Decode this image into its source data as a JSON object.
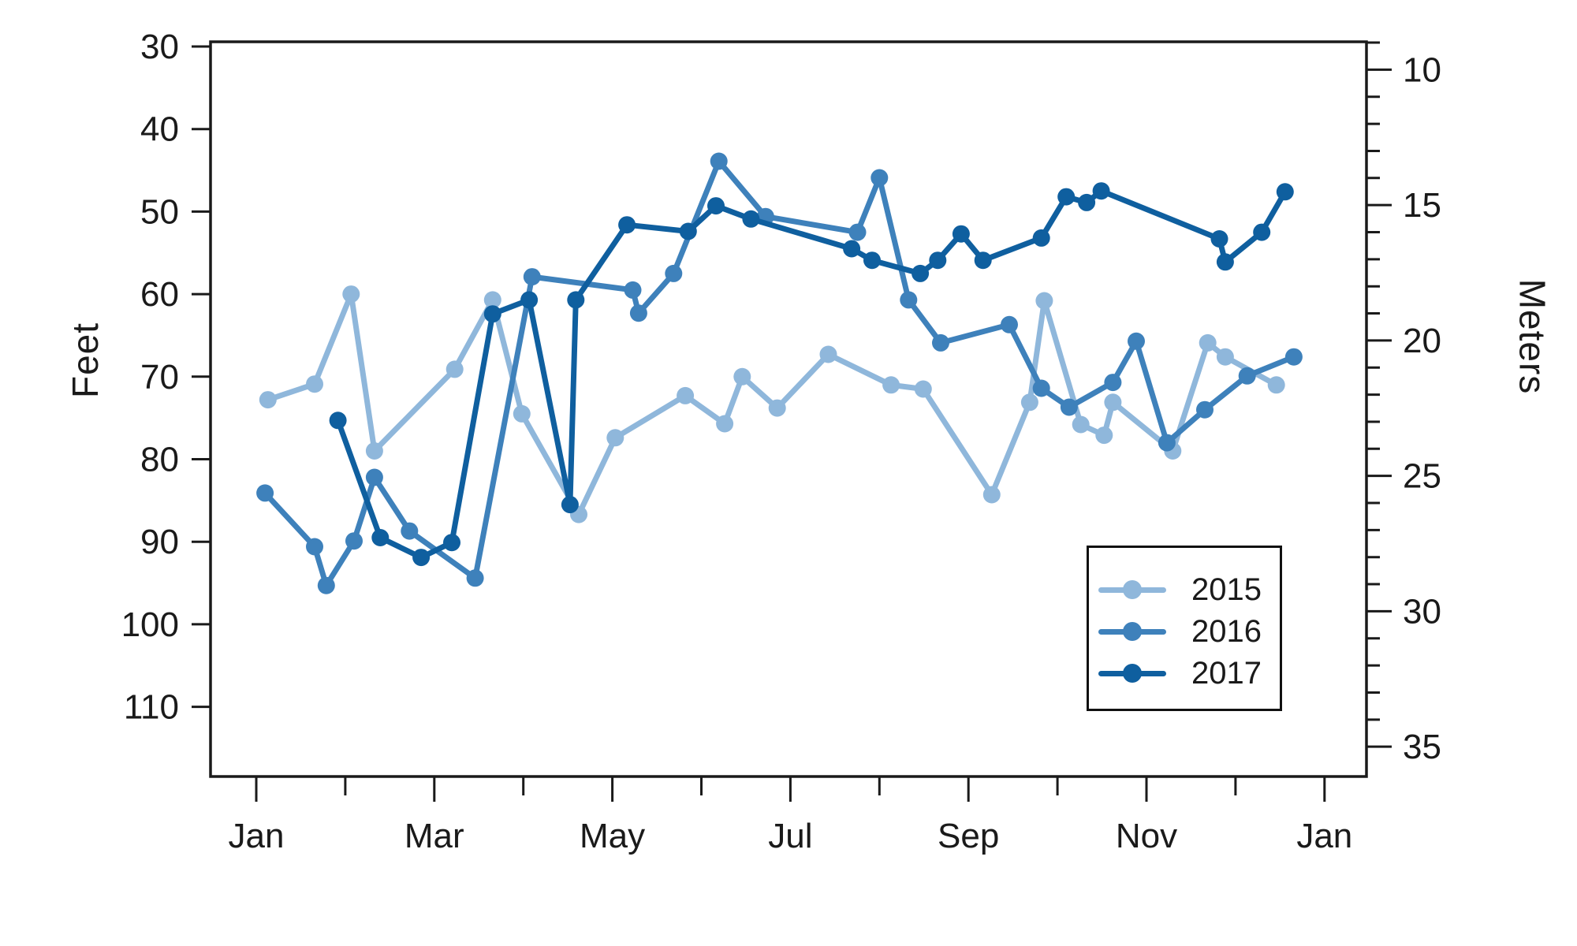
{
  "chart_data": {
    "type": "line",
    "title": "",
    "y_left": {
      "label": "Feet",
      "ticks": [
        30,
        40,
        50,
        60,
        70,
        80,
        90,
        100,
        110
      ],
      "inverted": true,
      "range_shown": [
        30,
        118
      ]
    },
    "y_right": {
      "label": "Meters",
      "ticks": [
        10,
        15,
        20,
        25,
        30,
        35
      ],
      "minor_range": [
        9,
        35
      ],
      "minor_step": 1,
      "feet_per_meter": 3.28084
    },
    "x": {
      "months": [
        "Jan",
        "Feb",
        "Mar",
        "Apr",
        "May",
        "Jun",
        "Jul",
        "Aug",
        "Sep",
        "Oct",
        "Nov",
        "Dec",
        "Jan"
      ],
      "labeled_ticks": [
        "Jan",
        "Mar",
        "May",
        "Jul",
        "Sep",
        "Nov",
        "Jan"
      ]
    },
    "legend_position": "bottom-right",
    "grid": false,
    "series": [
      {
        "name": "2015",
        "color": "#8fb7db",
        "points": [
          {
            "date": "Jan 5",
            "feet": 72.8
          },
          {
            "date": "Jan 21",
            "feet": 70.9
          },
          {
            "date": "Feb 3",
            "feet": 60.0
          },
          {
            "date": "Feb 11",
            "feet": 79.0
          },
          {
            "date": "Mar 8",
            "feet": 69.1
          },
          {
            "date": "Mar 21",
            "feet": 60.7
          },
          {
            "date": "Mar 31",
            "feet": 74.5
          },
          {
            "date": "Apr 20",
            "feet": 86.7
          },
          {
            "date": "May 2",
            "feet": 77.4
          },
          {
            "date": "May 26",
            "feet": 72.3
          },
          {
            "date": "Jun 9",
            "feet": 75.7
          },
          {
            "date": "Jun 15",
            "feet": 70.0
          },
          {
            "date": "Jun 27",
            "feet": 73.8
          },
          {
            "date": "Jul 14",
            "feet": 67.3
          },
          {
            "date": "Aug 5",
            "feet": 71.0
          },
          {
            "date": "Aug 16",
            "feet": 71.5
          },
          {
            "date": "Sep 9",
            "feet": 84.3
          },
          {
            "date": "Sep 22",
            "feet": 73.1
          },
          {
            "date": "Sep 27",
            "feet": 60.8
          },
          {
            "date": "Oct 9",
            "feet": 75.8
          },
          {
            "date": "Oct 17",
            "feet": 77.1
          },
          {
            "date": "Oct 20",
            "feet": 73.1
          },
          {
            "date": "Nov 10",
            "feet": 79.0
          },
          {
            "date": "Nov 22",
            "feet": 65.9
          },
          {
            "date": "Nov 28",
            "feet": 67.6
          },
          {
            "date": "Dec 15",
            "feet": 71.0
          }
        ]
      },
      {
        "name": "2016",
        "color": "#3e81bb",
        "points": [
          {
            "date": "Jan 4",
            "feet": 84.1
          },
          {
            "date": "Jan 21",
            "feet": 90.6
          },
          {
            "date": "Jan 25",
            "feet": 95.3
          },
          {
            "date": "Feb 4",
            "feet": 89.9
          },
          {
            "date": "Feb 11",
            "feet": 82.2
          },
          {
            "date": "Feb 23",
            "feet": 88.7
          },
          {
            "date": "Mar 15",
            "feet": 94.4
          },
          {
            "date": "Apr 4",
            "feet": 57.9
          },
          {
            "date": "May 8",
            "feet": 59.5
          },
          {
            "date": "May 10",
            "feet": 62.3
          },
          {
            "date": "May 22",
            "feet": 57.5
          },
          {
            "date": "Jun 7",
            "feet": 43.9
          },
          {
            "date": "Jun 23",
            "feet": 50.6
          },
          {
            "date": "Jul 24",
            "feet": 52.5
          },
          {
            "date": "Aug 1",
            "feet": 45.9
          },
          {
            "date": "Aug 11",
            "feet": 60.7
          },
          {
            "date": "Aug 22",
            "feet": 65.9
          },
          {
            "date": "Sep 15",
            "feet": 63.7
          },
          {
            "date": "Sep 26",
            "feet": 71.4
          },
          {
            "date": "Oct 5",
            "feet": 73.7
          },
          {
            "date": "Oct 20",
            "feet": 70.7
          },
          {
            "date": "Oct 28",
            "feet": 65.7
          },
          {
            "date": "Nov 8",
            "feet": 78.0
          },
          {
            "date": "Nov 21",
            "feet": 74.0
          },
          {
            "date": "Dec 5",
            "feet": 69.9
          },
          {
            "date": "Dec 21",
            "feet": 67.6
          }
        ]
      },
      {
        "name": "2017",
        "color": "#0f5f9f",
        "points": [
          {
            "date": "Jan 29",
            "feet": 75.3
          },
          {
            "date": "Feb 13",
            "feet": 89.5
          },
          {
            "date": "Feb 27",
            "feet": 91.9
          },
          {
            "date": "Mar 7",
            "feet": 90.1
          },
          {
            "date": "Mar 21",
            "feet": 62.4
          },
          {
            "date": "Apr 3",
            "feet": 60.7
          },
          {
            "date": "Apr 17",
            "feet": 85.5
          },
          {
            "date": "Apr 19",
            "feet": 60.7
          },
          {
            "date": "May 6",
            "feet": 51.6
          },
          {
            "date": "May 27",
            "feet": 52.4
          },
          {
            "date": "Jun 6",
            "feet": 49.3
          },
          {
            "date": "Jun 18",
            "feet": 50.9
          },
          {
            "date": "Jul 22",
            "feet": 54.5
          },
          {
            "date": "Jul 29",
            "feet": 55.9
          },
          {
            "date": "Aug 15",
            "feet": 57.5
          },
          {
            "date": "Aug 21",
            "feet": 55.9
          },
          {
            "date": "Aug 29",
            "feet": 52.7
          },
          {
            "date": "Sep 6",
            "feet": 55.9
          },
          {
            "date": "Sep 26",
            "feet": 53.2
          },
          {
            "date": "Oct 4",
            "feet": 48.2
          },
          {
            "date": "Oct 11",
            "feet": 48.9
          },
          {
            "date": "Oct 16",
            "feet": 47.5
          },
          {
            "date": "Nov 26",
            "feet": 53.3
          },
          {
            "date": "Nov 28",
            "feet": 56.1
          },
          {
            "date": "Dec 10",
            "feet": 52.5
          },
          {
            "date": "Dec 18",
            "feet": 47.6
          }
        ]
      }
    ]
  }
}
